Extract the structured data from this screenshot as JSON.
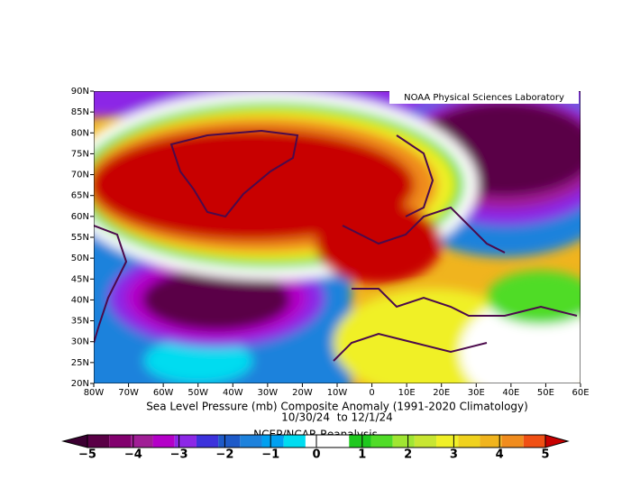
{
  "map": {
    "credit": "NOAA Physical Sciences Laboratory",
    "x_labels": [
      "80W",
      "70W",
      "60W",
      "50W",
      "40W",
      "30W",
      "20W",
      "10W",
      "0",
      "10E",
      "20E",
      "30E",
      "40E",
      "50E",
      "60E"
    ],
    "y_labels": [
      "20N",
      "25N",
      "30N",
      "35N",
      "40N",
      "45N",
      "50N",
      "55N",
      "60N",
      "65N",
      "70N",
      "75N",
      "80N",
      "85N",
      "90N"
    ]
  },
  "title": {
    "line1": "Sea Level Pressure (mb) Composite Anomaly (1991-2020 Climatology)",
    "line2": "10/30/24  to 12/1/24",
    "line3": "NCEP/NCAR Reanalysis"
  },
  "colorbar": {
    "labels": [
      "−5",
      "−4",
      "−3",
      "−2",
      "−1",
      "0",
      "1",
      "2",
      "3",
      "4",
      "5"
    ],
    "colors": [
      "#3c0032",
      "#5a0046",
      "#82006e",
      "#a01e96",
      "#b400c8",
      "#8c28e6",
      "#3c32dc",
      "#1e5ac8",
      "#1e82dc",
      "#00a0f0",
      "#00dcf0",
      "#ffffff",
      "#ffffff",
      "#1ec81e",
      "#50dc28",
      "#a0e632",
      "#c8e632",
      "#f0f028",
      "#f0d21e",
      "#f0b41e",
      "#f08c1e",
      "#f05014",
      "#c80000"
    ]
  }
}
